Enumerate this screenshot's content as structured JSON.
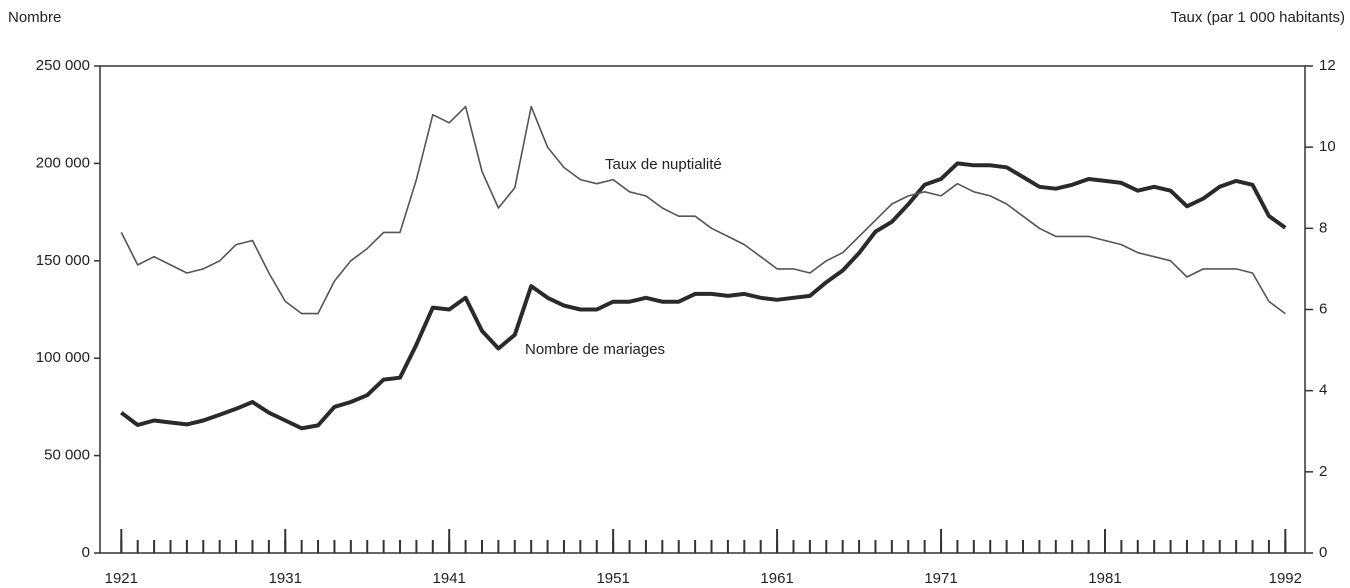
{
  "chart_data": {
    "type": "line",
    "y_label": "Nombre",
    "y2_label": "Taux (par 1 000 habitants)",
    "x": [
      1921,
      1922,
      1923,
      1924,
      1925,
      1926,
      1927,
      1928,
      1929,
      1930,
      1931,
      1932,
      1933,
      1934,
      1935,
      1936,
      1937,
      1938,
      1939,
      1940,
      1941,
      1942,
      1943,
      1944,
      1945,
      1946,
      1947,
      1948,
      1949,
      1950,
      1951,
      1952,
      1953,
      1954,
      1955,
      1956,
      1957,
      1958,
      1959,
      1960,
      1961,
      1962,
      1963,
      1964,
      1965,
      1966,
      1967,
      1968,
      1969,
      1970,
      1971,
      1972,
      1973,
      1974,
      1975,
      1976,
      1977,
      1978,
      1979,
      1980,
      1981,
      1982,
      1983,
      1984,
      1985,
      1986,
      1987,
      1988,
      1989,
      1990,
      1991,
      1992
    ],
    "series": [
      {
        "name": "Nombre de mariages",
        "color": "#2a2a2a",
        "axis": "y",
        "values": [
          72000,
          65700,
          68000,
          67000,
          66000,
          68000,
          71000,
          74000,
          77500,
          72000,
          68000,
          64000,
          65500,
          75000,
          77500,
          81000,
          89000,
          90000,
          107000,
          126000,
          125000,
          131000,
          114000,
          105000,
          112000,
          137000,
          131000,
          127000,
          125000,
          125000,
          129000,
          129000,
          131000,
          129000,
          129000,
          133000,
          133000,
          132000,
          133000,
          131000,
          130000,
          131000,
          132000,
          139000,
          145000,
          154000,
          165000,
          170000,
          179000,
          189000,
          192000,
          200000,
          199000,
          199000,
          198000,
          193000,
          188000,
          187000,
          189000,
          192000,
          191000,
          190000,
          186000,
          188000,
          186000,
          178000,
          182000,
          188000,
          191000,
          189000,
          173000,
          167000
        ]
      },
      {
        "name": "Taux de nuptialité",
        "color": "#555555",
        "axis": "y2",
        "values": [
          7.9,
          7.1,
          7.3,
          7.1,
          6.9,
          7.0,
          7.2,
          7.6,
          7.7,
          6.9,
          6.2,
          5.9,
          5.9,
          6.7,
          7.2,
          7.5,
          7.9,
          7.9,
          9.2,
          10.8,
          10.6,
          11.0,
          9.4,
          8.5,
          9.0,
          11.0,
          10.0,
          9.5,
          9.2,
          9.1,
          9.2,
          8.9,
          8.8,
          8.5,
          8.3,
          8.3,
          8.0,
          7.8,
          7.6,
          7.3,
          7.0,
          7.0,
          6.9,
          7.2,
          7.4,
          7.8,
          8.2,
          8.6,
          8.8,
          8.9,
          8.8,
          9.1,
          8.9,
          8.8,
          8.6,
          8.3,
          8.0,
          7.8,
          7.8,
          7.8,
          7.7,
          7.6,
          7.4,
          7.3,
          7.2,
          6.8,
          7.0,
          7.0,
          7.0,
          6.9,
          6.2,
          5.9
        ]
      }
    ],
    "xlim": [
      1919.7,
      1993.2
    ],
    "xticks": [
      1921,
      1931,
      1941,
      1951,
      1961,
      1971,
      1981,
      1992
    ],
    "ylim": [
      0,
      250000
    ],
    "yticks": [
      {
        "value": 0,
        "label": "0"
      },
      {
        "value": 50000,
        "label": "50 000"
      },
      {
        "value": 100000,
        "label": "100 000"
      },
      {
        "value": 150000,
        "label": "150 000"
      },
      {
        "value": 200000,
        "label": "200 000"
      },
      {
        "value": 250000,
        "label": "250 000"
      }
    ],
    "y2lim": [
      0,
      12
    ],
    "y2ticks": [
      0,
      2,
      4,
      6,
      8,
      10,
      12
    ]
  }
}
